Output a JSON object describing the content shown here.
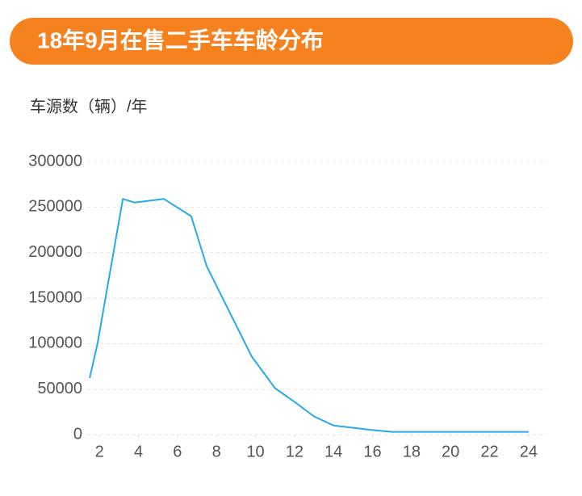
{
  "chart_data": {
    "type": "line",
    "title": "18年9月在售二手车车龄分布",
    "y_label": "车源数（辆）/年",
    "x": [
      1.5,
      1.9,
      3.2,
      3.8,
      5.3,
      6.7,
      7.5,
      9.8,
      11,
      12,
      13,
      14,
      16,
      17,
      18,
      20,
      22,
      24
    ],
    "values": [
      62000,
      100000,
      259000,
      255000,
      259000,
      240000,
      185000,
      86000,
      51000,
      36000,
      20000,
      10000,
      5000,
      3000,
      3000,
      3000,
      3000,
      3000
    ],
    "color": "#29a9e8",
    "xlim": [
      1,
      25
    ],
    "xticks": [
      2,
      4,
      6,
      8,
      10,
      12,
      14,
      16,
      18,
      20,
      22,
      24
    ],
    "ylim": [
      0,
      300000
    ],
    "yticks": [
      0,
      50000,
      100000,
      150000,
      200000,
      250000,
      300000
    ],
    "grid": true
  }
}
